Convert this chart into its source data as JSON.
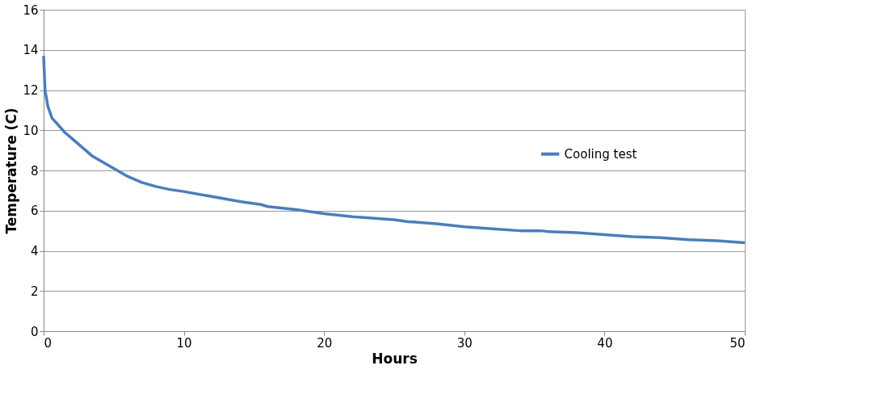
{
  "chart_data": {
    "type": "line",
    "xlabel": "Hours",
    "ylabel": "Temperature (C)",
    "x": [
      0,
      0.1,
      0.3,
      0.6,
      1,
      1.5,
      2,
      2.5,
      3,
      3.5,
      4,
      5,
      6,
      7,
      8,
      9,
      10,
      12,
      14,
      15.5,
      16,
      18,
      20,
      22,
      24,
      25,
      26,
      28,
      30,
      32,
      34,
      35.5,
      36,
      38,
      40,
      42,
      44,
      46,
      48,
      50
    ],
    "series": [
      {
        "name": "Cooling test",
        "color": "#4a7ebb",
        "values": [
          13.7,
          12.0,
          11.2,
          10.6,
          10.3,
          9.9,
          9.6,
          9.3,
          9.0,
          8.7,
          8.5,
          8.1,
          7.7,
          7.4,
          7.2,
          7.05,
          6.95,
          6.7,
          6.45,
          6.3,
          6.2,
          6.05,
          5.85,
          5.7,
          5.6,
          5.55,
          5.45,
          5.35,
          5.2,
          5.1,
          5.0,
          5.0,
          4.95,
          4.9,
          4.8,
          4.7,
          4.65,
          4.55,
          4.5,
          4.4
        ]
      }
    ],
    "xlim": [
      0,
      50
    ],
    "xticks": [
      0,
      10,
      20,
      30,
      40,
      50
    ],
    "ylim": [
      0,
      16
    ],
    "yticks": [
      0,
      2,
      4,
      6,
      8,
      10,
      12,
      14,
      16
    ],
    "grid": "y",
    "legend": "right",
    "marker": "none",
    "line_style": "solid"
  }
}
